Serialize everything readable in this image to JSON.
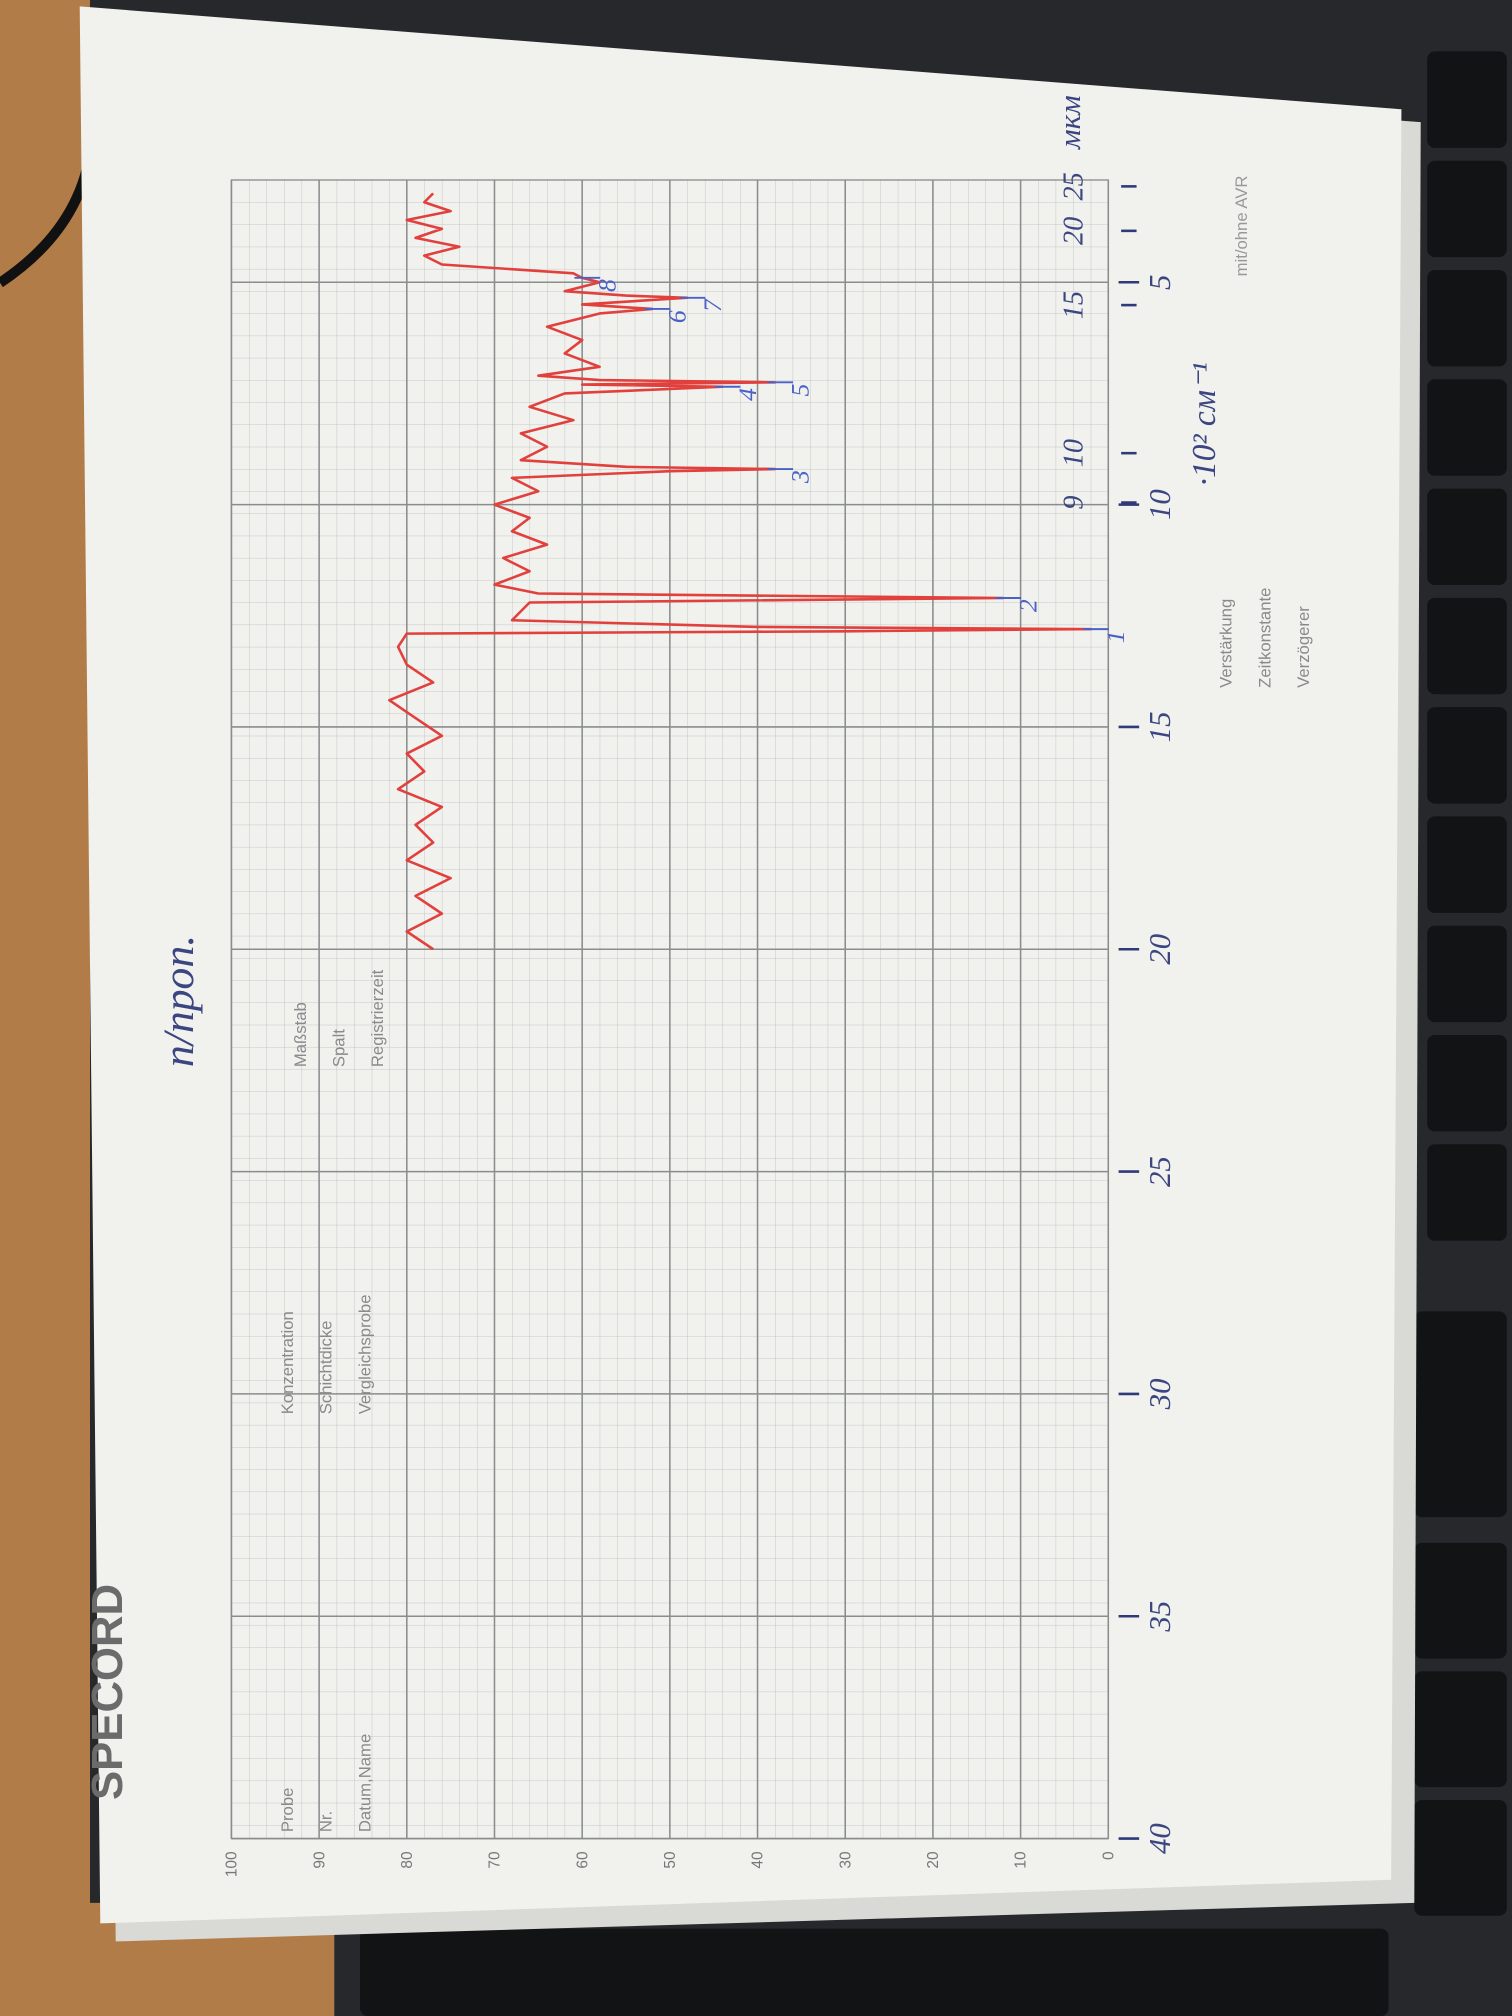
{
  "chart_data": {
    "type": "line",
    "title": "SPECORD",
    "subtitle": "п/проп.",
    "x_label": "·10² см⁻¹",
    "x2_label": "мкм",
    "x": [
      20,
      19.6,
      19.2,
      18.8,
      18.4,
      18.0,
      17.6,
      17.2,
      16.8,
      16.4,
      16.0,
      15.6,
      15.2,
      14.8,
      14.4,
      14.0,
      13.6,
      13.2,
      12.9,
      12.85,
      12.8,
      12.75,
      12.6,
      12.2,
      12.1,
      12.0,
      11.8,
      11.5,
      11.2,
      10.9,
      10.6,
      10.3,
      10.0,
      9.7,
      9.4,
      9.25,
      9.2,
      9.15,
      9.0,
      8.7,
      8.4,
      8.1,
      7.8,
      7.5,
      7.35,
      7.3,
      7.25,
      7.2,
      7.1,
      6.9,
      6.6,
      6.3,
      6.0,
      5.7,
      5.6,
      5.5,
      5.35,
      5.3,
      5.2,
      5.0,
      4.9,
      4.8,
      4.6,
      4.4,
      4.2,
      4.0,
      3.8,
      3.6,
      3.4,
      3.2,
      3.0
    ],
    "values": [
      77,
      80,
      76,
      79,
      75,
      80,
      77,
      79,
      76,
      81,
      78,
      80,
      76,
      79,
      82,
      77,
      80,
      81,
      80,
      30,
      2,
      40,
      68,
      66,
      12,
      65,
      70,
      66,
      69,
      64,
      68,
      66,
      70,
      65,
      68,
      50,
      38,
      55,
      67,
      64,
      67,
      61,
      66,
      62,
      44,
      60,
      38,
      58,
      65,
      58,
      62,
      60,
      64,
      58,
      52,
      60,
      48,
      55,
      62,
      58,
      60,
      61,
      76,
      78,
      74,
      79,
      76,
      80,
      75,
      78,
      77
    ],
    "color": "#e2403c",
    "xlim": [
      40,
      2.7
    ],
    "ylim": [
      0,
      100
    ],
    "xticks": [
      40,
      35,
      30,
      25,
      20,
      15,
      10,
      5
    ],
    "yticks": [
      0,
      10,
      20,
      30,
      40,
      50,
      60,
      70,
      80,
      90,
      100
    ],
    "x2ticks": [
      {
        "value": 11.11,
        "label": "9"
      },
      {
        "value": 10,
        "label": "10"
      },
      {
        "value": 6.67,
        "label": "15"
      },
      {
        "value": 5,
        "label": "20"
      },
      {
        "value": 4,
        "label": "25"
      }
    ],
    "grid": true,
    "annotations": [
      {
        "label": "1",
        "x": 12.8,
        "y": 2
      },
      {
        "label": "2",
        "x": 12.1,
        "y": 12
      },
      {
        "label": "3",
        "x": 9.2,
        "y": 38
      },
      {
        "label": "4",
        "x": 7.35,
        "y": 44
      },
      {
        "label": "5",
        "x": 7.25,
        "y": 38
      },
      {
        "label": "6",
        "x": 5.6,
        "y": 52
      },
      {
        "label": "7",
        "x": 5.35,
        "y": 48
      },
      {
        "label": "8",
        "x": 4.9,
        "y": 60
      }
    ],
    "form_fields": [
      [
        "Probe",
        "Nr.",
        "Datum,Name"
      ],
      [
        "Konzentration",
        "Schichtdicke",
        "Vergleichsprobe"
      ],
      [
        "Maßstab",
        "Spalt",
        "Registrierzeit"
      ],
      [
        "Verstärkung",
        "Zeitkonstante",
        "Verzögerer"
      ]
    ],
    "avr_label": "mit/ohne AVR"
  }
}
